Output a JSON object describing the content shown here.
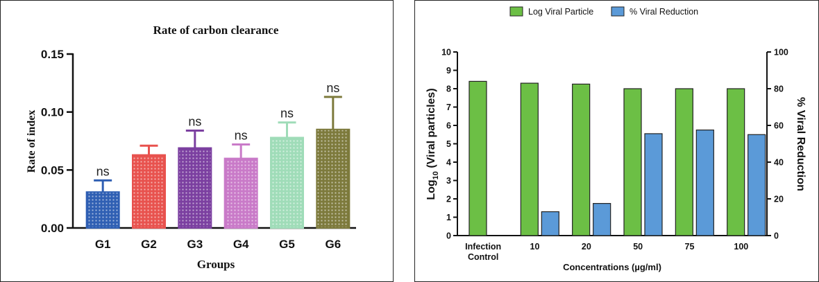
{
  "chart_data": [
    {
      "type": "bar",
      "title": "Rate of carbon clearance",
      "xlabel": "Groups",
      "ylabel": "Rate of index",
      "ylim": [
        0,
        0.15
      ],
      "yticks": [
        "0.00",
        "0.05",
        "0.10",
        "0.15"
      ],
      "categories": [
        "G1",
        "G2",
        "G3",
        "G4",
        "G5",
        "G6"
      ],
      "values": [
        0.031,
        0.063,
        0.069,
        0.06,
        0.078,
        0.085
      ],
      "error": [
        0.01,
        0.008,
        0.015,
        0.012,
        0.013,
        0.028
      ],
      "annotations": [
        "ns",
        "",
        "ns",
        "ns",
        "ns",
        "ns"
      ],
      "colors": [
        "#2f5fb3",
        "#e8524e",
        "#7b3fa0",
        "#c97ac8",
        "#9fdcb8",
        "#7d7a3c"
      ],
      "grid": false
    },
    {
      "type": "bar",
      "categories": [
        "Infection Control",
        "10",
        "20",
        "50",
        "75",
        "100"
      ],
      "xlabel": "Concentrations (µg/ml)",
      "ylabel_left": "Log10 (Viral particles)",
      "ylabel_right": "% Viral Reduction",
      "ylim_left": [
        0,
        10
      ],
      "ylim_right": [
        0,
        100
      ],
      "yticks_left": [
        "0",
        "1",
        "2",
        "3",
        "4",
        "5",
        "6",
        "7",
        "8",
        "9",
        "10"
      ],
      "yticks_right": [
        "0",
        "20",
        "40",
        "60",
        "80",
        "100"
      ],
      "series": [
        {
          "name": "Log Viral Particle",
          "axis": "left",
          "color": "#6cbf45",
          "values": [
            8.4,
            8.3,
            8.25,
            8.0,
            8.0,
            8.0
          ]
        },
        {
          "name": "% Viral Reduction",
          "axis": "right",
          "color": "#5b9ad8",
          "values": [
            null,
            13,
            17.5,
            55.5,
            57.5,
            55
          ]
        }
      ],
      "legend": "top",
      "grid": false
    }
  ]
}
